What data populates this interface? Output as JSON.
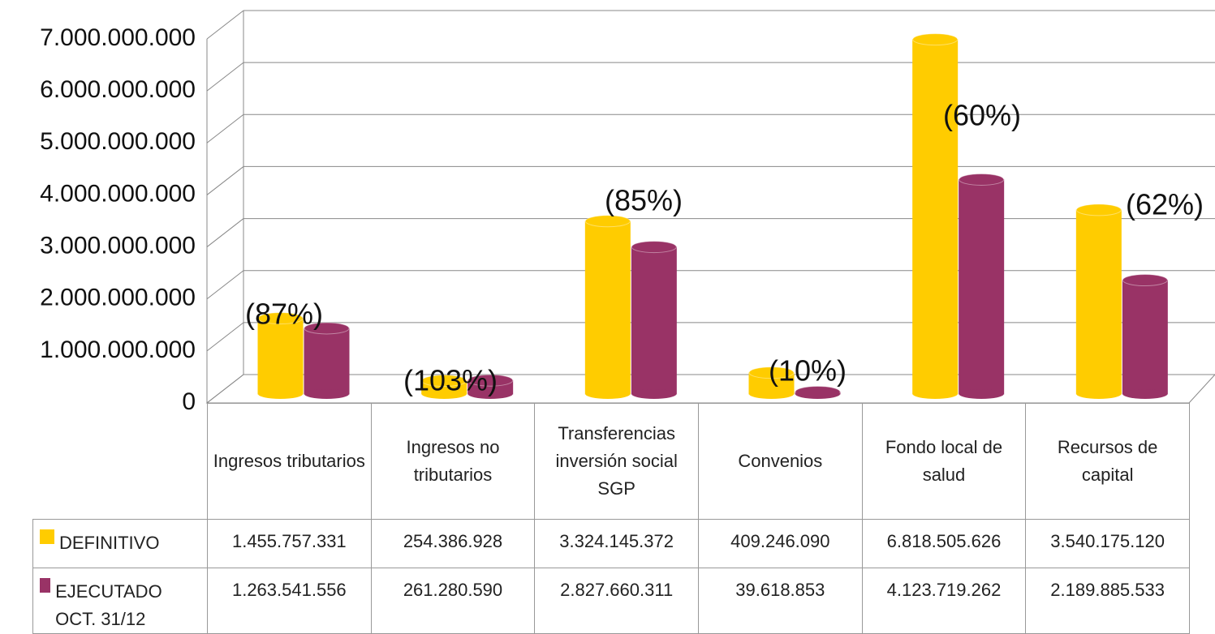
{
  "chart_data": {
    "type": "bar3d",
    "categories": [
      "Ingresos tributarios",
      "Ingresos no tributarios",
      "Transferencias inversión social SGP",
      "Convenios",
      "Fondo local de salud",
      "Recursos de capital"
    ],
    "series": [
      {
        "name": "DEFINITIVO",
        "color": "#ffcc00",
        "values": [
          1455757331,
          254386928,
          3324145372,
          409246090,
          6818505626,
          3540175120
        ],
        "value_labels": [
          "1.455.757.331",
          "254.386.928",
          "3.324.145.372",
          "409.246.090",
          "6.818.505.626",
          "3.540.175.120"
        ]
      },
      {
        "name": "EJECUTADO OCT. 31/12",
        "color": "#993366",
        "values": [
          1263541556,
          261280590,
          2827660311,
          39618853,
          4123719262,
          2189885533
        ],
        "value_labels": [
          "1.263.541.556",
          "261.280.590",
          "2.827.660.311",
          "39.618.853",
          "4.123.719.262",
          "2.189.885.533"
        ]
      }
    ],
    "annotations": [
      "(87%)",
      "(103%)",
      "(85%)",
      "(10%)",
      "(60%)",
      "(62%)"
    ],
    "ylim": [
      0,
      7000000000
    ],
    "yticks": [
      0,
      {
        "value": 1000000000,
        "label": "1.000.000.000"
      },
      {
        "value": 2000000000,
        "label": "2.000.000.000"
      },
      {
        "value": 3000000000,
        "label": "3.000.000.000"
      },
      {
        "value": 4000000000,
        "label": "4.000.000.000"
      },
      {
        "value": 5000000000,
        "label": "5.000.000.000"
      },
      {
        "value": 6000000000,
        "label": "6.000.000.000"
      },
      {
        "value": 7000000000,
        "label": "7.000.000.000"
      }
    ],
    "grid": true
  }
}
